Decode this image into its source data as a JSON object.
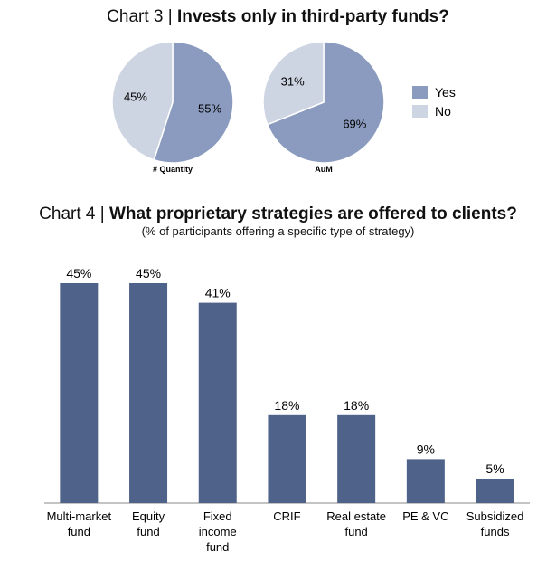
{
  "chart_data": [
    {
      "type": "pie",
      "title_prefix": "Chart 3 | ",
      "title": "Invests only in third-party funds?",
      "legend": [
        "Yes",
        "No"
      ],
      "legend_position": "right",
      "colors": {
        "Yes": "#8a9bbf",
        "No": "#ced5e2"
      },
      "pies": [
        {
          "label": "# Quantity",
          "slices": [
            {
              "name": "Yes",
              "value": 55,
              "label": "55%"
            },
            {
              "name": "No",
              "value": 45,
              "label": "45%"
            }
          ]
        },
        {
          "label": "AuM",
          "slices": [
            {
              "name": "Yes",
              "value": 69,
              "label": "69%"
            },
            {
              "name": "No",
              "value": 31,
              "label": "31%"
            }
          ]
        }
      ]
    },
    {
      "type": "bar",
      "title_prefix": "Chart 4 | ",
      "title": "What proprietary strategies are offered to clients?",
      "subtitle": "(% of participants offering a specific type of strategy)",
      "categories": [
        [
          "Multi-market",
          "fund"
        ],
        [
          "Equity",
          "fund"
        ],
        [
          "Fixed",
          "income",
          "fund"
        ],
        [
          "CRIF"
        ],
        [
          "Real estate",
          "fund"
        ],
        [
          "PE & VC"
        ],
        [
          "Subsidized",
          "funds"
        ]
      ],
      "values": [
        45,
        45,
        41,
        18,
        18,
        9,
        5
      ],
      "labels": [
        "45%",
        "45%",
        "41%",
        "18%",
        "18%",
        "9%",
        "5%"
      ],
      "ylim": [
        0,
        50
      ],
      "bar_color": "#4f6289",
      "axis_color": "#888888",
      "grid": false
    }
  ]
}
